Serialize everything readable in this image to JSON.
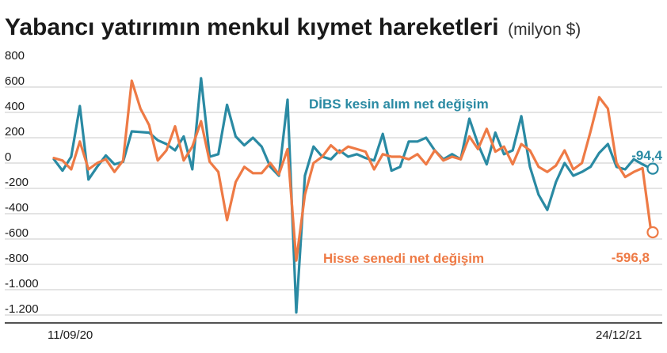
{
  "title": "Yabancı yatırımın menkul kıymet hareketleri",
  "unit": "(milyon $)",
  "chart_data": {
    "type": "line",
    "ylim": [
      -1250,
      800
    ],
    "y_ticks": [
      800,
      600,
      400,
      200,
      0,
      -200,
      -400,
      -600,
      -800,
      -1000,
      -1200
    ],
    "y_tick_labels": [
      "800",
      "600",
      "400",
      "200",
      "0",
      "-200",
      "-400",
      "-600",
      "-800",
      "-1.000",
      "-1.200"
    ],
    "x_labels": [
      "11/09/20",
      "24/12/21"
    ],
    "grid": true,
    "series": [
      {
        "name": "DİBS kesin alım net değişim",
        "color": "#2a8aa3",
        "end_label": "-94,4",
        "values": [
          -20,
          -110,
          0,
          400,
          -180,
          -80,
          10,
          -60,
          -40,
          200,
          195,
          190,
          130,
          100,
          50,
          160,
          -100,
          620,
          0,
          20,
          410,
          160,
          90,
          150,
          80,
          -80,
          -150,
          450,
          -1230,
          -150,
          80,
          0,
          -20,
          50,
          0,
          20,
          -10,
          -30,
          180,
          -110,
          -80,
          120,
          120,
          150,
          50,
          -20,
          20,
          -20,
          300,
          100,
          -60,
          190,
          20,
          50,
          320,
          -80,
          -300,
          -420,
          -200,
          -50,
          -150,
          -120,
          -80,
          30,
          100,
          -80,
          -100,
          -20,
          -60,
          -94.4
        ]
      },
      {
        "name": "Hisse senedi net değişim",
        "color": "#ee7a45",
        "end_label": "-596,8",
        "values": [
          -10,
          -30,
          -100,
          120,
          -100,
          -50,
          -20,
          -120,
          -30,
          600,
          380,
          250,
          -30,
          50,
          240,
          -30,
          80,
          280,
          -40,
          -120,
          -500,
          -200,
          -80,
          -130,
          -130,
          -50,
          -140,
          60,
          -820,
          -300,
          -50,
          0,
          90,
          30,
          80,
          60,
          40,
          -100,
          20,
          0,
          0,
          -20,
          20,
          -60,
          50,
          -30,
          0,
          -20,
          160,
          60,
          220,
          40,
          80,
          -60,
          100,
          50,
          -80,
          -120,
          -70,
          50,
          -100,
          -50,
          200,
          470,
          380,
          -50,
          -160,
          -120,
          -90,
          -596.8
        ]
      }
    ]
  }
}
